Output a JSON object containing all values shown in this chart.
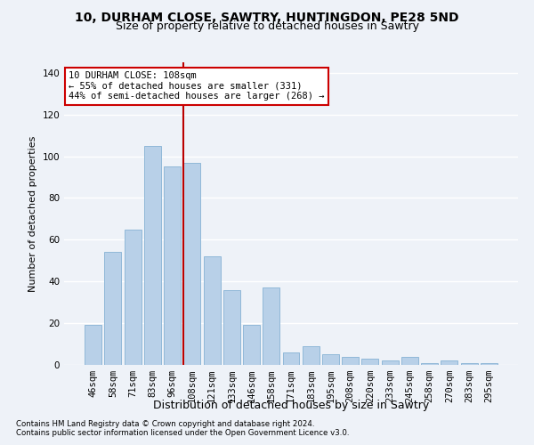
{
  "title1": "10, DURHAM CLOSE, SAWTRY, HUNTINGDON, PE28 5ND",
  "title2": "Size of property relative to detached houses in Sawtry",
  "xlabel": "Distribution of detached houses by size in Sawtry",
  "ylabel": "Number of detached properties",
  "categories": [
    "46sqm",
    "58sqm",
    "71sqm",
    "83sqm",
    "96sqm",
    "108sqm",
    "121sqm",
    "133sqm",
    "146sqm",
    "158sqm",
    "171sqm",
    "183sqm",
    "195sqm",
    "208sqm",
    "220sqm",
    "233sqm",
    "245sqm",
    "258sqm",
    "270sqm",
    "283sqm",
    "295sqm"
  ],
  "values": [
    19,
    54,
    65,
    105,
    95,
    97,
    52,
    36,
    19,
    37,
    6,
    9,
    5,
    4,
    3,
    2,
    4,
    1,
    2,
    1,
    1
  ],
  "bar_color": "#b8d0e8",
  "bar_edge_color": "#90b8d8",
  "highlight_bar_idx": 5,
  "annotation_title": "10 DURHAM CLOSE: 108sqm",
  "annotation_line1": "← 55% of detached houses are smaller (331)",
  "annotation_line2": "44% of semi-detached houses are larger (268) →",
  "annotation_box_facecolor": "#ffffff",
  "annotation_box_edgecolor": "#cc0000",
  "ylim": [
    0,
    145
  ],
  "yticks": [
    0,
    20,
    40,
    60,
    80,
    100,
    120,
    140
  ],
  "footer1": "Contains HM Land Registry data © Crown copyright and database right 2024.",
  "footer2": "Contains public sector information licensed under the Open Government Licence v3.0.",
  "bg_color": "#eef2f8",
  "grid_color": "#ffffff",
  "title1_fontsize": 10,
  "title2_fontsize": 9,
  "tick_fontsize": 7.5,
  "ylabel_fontsize": 8,
  "xlabel_fontsize": 9
}
